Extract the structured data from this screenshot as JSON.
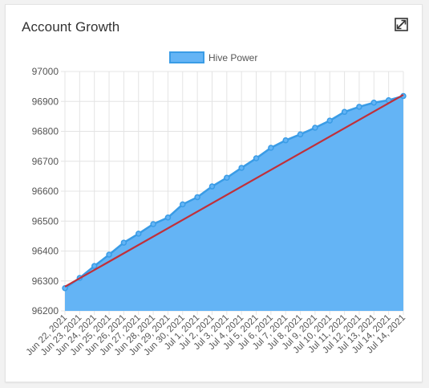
{
  "card": {
    "title": "Account Growth",
    "expand_icon": "expand-icon"
  },
  "colors": {
    "fill": "#64b4f5",
    "line": "#3a9ce6",
    "trend": "#c0303a",
    "grid": "#e4e4e4"
  },
  "chart_data": {
    "type": "area",
    "title": "",
    "xlabel": "",
    "ylabel": "",
    "ylim": [
      96200,
      97000
    ],
    "yticks": [
      96200,
      96300,
      96400,
      96500,
      96600,
      96700,
      96800,
      96900,
      97000
    ],
    "grid": true,
    "legend": "top-center",
    "categories": [
      "Jun 22, 2021",
      "Jun 23, 2021",
      "Jun 24, 2021",
      "Jun 25, 2021",
      "Jun 26, 2021",
      "Jun 27, 2021",
      "Jun 28, 2021",
      "Jun 29, 2021",
      "Jun 30, 2021",
      "Jul 1, 2021",
      "Jul 2, 2021",
      "Jul 3, 2021",
      "Jul 4, 2021",
      "Jul 5, 2021",
      "Jul 6, 2021",
      "Jul 7, 2021",
      "Jul 8, 2021",
      "Jul 9, 2021",
      "Jul 10, 2021",
      "Jul 11, 2021",
      "Jul 12, 2021",
      "Jul 13, 2021",
      "Jul 14, 2021",
      "Jul 14, 2021"
    ],
    "series": [
      {
        "name": "Hive Power",
        "values": [
          96276,
          96310,
          96350,
          96388,
          96428,
          96458,
          96490,
          96512,
          96556,
          96580,
          96616,
          96645,
          96678,
          96710,
          96745,
          96770,
          96790,
          96812,
          96836,
          96865,
          96882,
          96896,
          96904,
          96918
        ]
      }
    ],
    "trendline": {
      "start": 96281,
      "end": 96922
    }
  }
}
